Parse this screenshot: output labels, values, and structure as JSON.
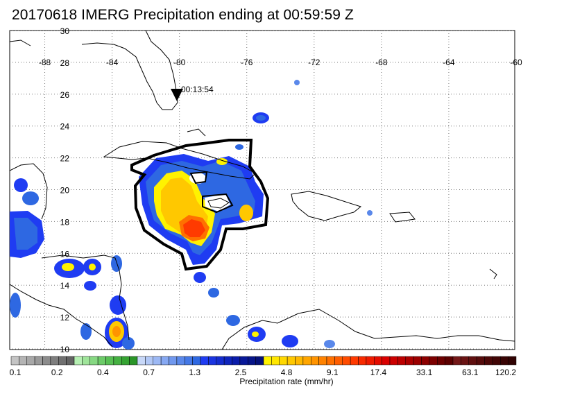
{
  "title": "20170618 IMERG Precipitation ending at 00:59:59 Z",
  "map": {
    "lon_labels": [
      "-88",
      "-84",
      "-80",
      "-76",
      "-72",
      "-68",
      "-64",
      "-60"
    ],
    "lat_labels": [
      "30",
      "28",
      "26",
      "24",
      "22",
      "20",
      "18",
      "16",
      "14",
      "12",
      "10"
    ],
    "lon_range": [
      -90,
      -60
    ],
    "lat_range": [
      9.5,
      30
    ],
    "storm_marker": {
      "label": "00:13:54",
      "lon": -80,
      "lat": 26.2,
      "icon": "down-triangle-icon"
    }
  },
  "colorbar": {
    "label": "Precipitation rate (mm/hr)",
    "tick_labels": [
      "0.1",
      "0.2",
      "0.4",
      "0.7",
      "1.3",
      "2.5",
      "4.8",
      "9.1",
      "17.4",
      "33.1",
      "63.1",
      "120.2"
    ],
    "colors": [
      "#c4c4c4",
      "#b4b4b4",
      "#a8a8a8",
      "#9a9a9a",
      "#8c8c8c",
      "#7e7e7e",
      "#707070",
      "#636363",
      "#b6f0b3",
      "#9fe49a",
      "#86d882",
      "#6ccb68",
      "#57bf53",
      "#45b142",
      "#35a332",
      "#2a9528",
      "#c8d8f8",
      "#b2c8f6",
      "#9cb8f4",
      "#86a8f2",
      "#7098ee",
      "#5a88ea",
      "#4478e6",
      "#2e68e2",
      "#1f3cf2",
      "#1a34e0",
      "#142cce",
      "#0e24bc",
      "#0a1caa",
      "#081898",
      "#061488",
      "#041078",
      "#fff200",
      "#ffe600",
      "#ffd800",
      "#ffc800",
      "#ffb800",
      "#ffa600",
      "#ff9400",
      "#ff8200",
      "#ff7000",
      "#ff5e00",
      "#ff4c00",
      "#ff3a00",
      "#f82a00",
      "#ee1a00",
      "#e40c00",
      "#da0000",
      "#cc0000",
      "#bc0000",
      "#ac0000",
      "#9c0000",
      "#8c0000",
      "#7c0000",
      "#6c0000",
      "#5c0000",
      "#741818",
      "#6a1414",
      "#601010",
      "#560c0c",
      "#4c0808",
      "#420606",
      "#380404",
      "#300202"
    ]
  }
}
